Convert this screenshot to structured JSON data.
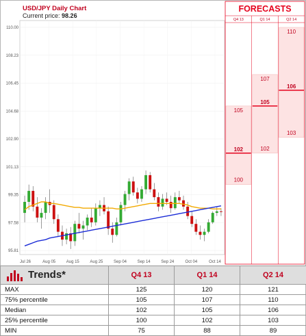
{
  "chart_data": {
    "type": "candlestick",
    "title": "USD/JPY Daily Chart",
    "current_price_label": "Current price:",
    "current_price": "98.26",
    "y_ticks": [
      "110.00",
      "108.23",
      "106.45",
      "104.68",
      "102.90",
      "101.13",
      "99.35",
      "97.58",
      "95.81"
    ],
    "x_ticks": [
      "Jul 26",
      "Aug 05",
      "Aug 15",
      "Aug 25",
      "Sep 04",
      "Sep 14",
      "Sep 24",
      "Oct 04",
      "Oct 14"
    ],
    "ylim": [
      95.81,
      110.0
    ],
    "candles": [
      {
        "o": 98.2,
        "h": 99.3,
        "l": 97.6,
        "c": 98.9
      },
      {
        "o": 98.9,
        "h": 100.0,
        "l": 98.4,
        "c": 99.6
      },
      {
        "o": 99.6,
        "h": 99.9,
        "l": 98.3,
        "c": 98.6
      },
      {
        "o": 98.6,
        "h": 99.2,
        "l": 97.6,
        "c": 97.9
      },
      {
        "o": 97.9,
        "h": 98.5,
        "l": 97.2,
        "c": 98.2
      },
      {
        "o": 98.2,
        "h": 99.2,
        "l": 97.8,
        "c": 98.9
      },
      {
        "o": 98.9,
        "h": 99.7,
        "l": 98.2,
        "c": 98.7
      },
      {
        "o": 98.7,
        "h": 99.0,
        "l": 97.5,
        "c": 97.8
      },
      {
        "o": 97.8,
        "h": 98.1,
        "l": 96.7,
        "c": 97.0
      },
      {
        "o": 97.0,
        "h": 97.4,
        "l": 96.1,
        "c": 96.5
      },
      {
        "o": 96.5,
        "h": 97.2,
        "l": 96.2,
        "c": 96.9
      },
      {
        "o": 96.9,
        "h": 97.3,
        "l": 95.9,
        "c": 96.4
      },
      {
        "o": 96.4,
        "h": 97.7,
        "l": 96.1,
        "c": 97.5
      },
      {
        "o": 97.5,
        "h": 98.2,
        "l": 96.9,
        "c": 97.2
      },
      {
        "o": 97.2,
        "h": 97.7,
        "l": 96.5,
        "c": 97.4
      },
      {
        "o": 97.4,
        "h": 98.1,
        "l": 97.1,
        "c": 97.9
      },
      {
        "o": 97.9,
        "h": 98.5,
        "l": 97.3,
        "c": 97.6
      },
      {
        "o": 97.6,
        "h": 98.8,
        "l": 97.4,
        "c": 98.5
      },
      {
        "o": 98.5,
        "h": 99.0,
        "l": 98.0,
        "c": 98.7
      },
      {
        "o": 98.7,
        "h": 99.2,
        "l": 98.1,
        "c": 98.3
      },
      {
        "o": 98.3,
        "h": 98.6,
        "l": 96.8,
        "c": 97.2
      },
      {
        "o": 97.2,
        "h": 97.6,
        "l": 96.3,
        "c": 96.8
      },
      {
        "o": 96.8,
        "h": 97.9,
        "l": 96.7,
        "c": 97.6
      },
      {
        "o": 97.6,
        "h": 98.9,
        "l": 97.4,
        "c": 98.7
      },
      {
        "o": 98.7,
        "h": 99.6,
        "l": 98.3,
        "c": 99.4
      },
      {
        "o": 99.4,
        "h": 100.4,
        "l": 99.0,
        "c": 100.2
      },
      {
        "o": 100.2,
        "h": 100.5,
        "l": 99.3,
        "c": 99.5
      },
      {
        "o": 99.5,
        "h": 99.8,
        "l": 98.8,
        "c": 99.1
      },
      {
        "o": 99.1,
        "h": 99.9,
        "l": 98.9,
        "c": 99.7
      },
      {
        "o": 99.7,
        "h": 100.9,
        "l": 99.4,
        "c": 100.6
      },
      {
        "o": 100.6,
        "h": 100.8,
        "l": 99.5,
        "c": 99.7
      },
      {
        "o": 99.7,
        "h": 100.1,
        "l": 99.0,
        "c": 99.2
      },
      {
        "o": 99.2,
        "h": 99.5,
        "l": 98.3,
        "c": 98.6
      },
      {
        "o": 98.6,
        "h": 99.4,
        "l": 98.4,
        "c": 99.1
      },
      {
        "o": 99.1,
        "h": 99.5,
        "l": 98.7,
        "c": 98.9
      },
      {
        "o": 98.9,
        "h": 99.3,
        "l": 98.2,
        "c": 98.5
      },
      {
        "o": 98.5,
        "h": 99.5,
        "l": 98.4,
        "c": 99.2
      },
      {
        "o": 99.2,
        "h": 99.6,
        "l": 98.8,
        "c": 99.0
      },
      {
        "o": 99.0,
        "h": 99.3,
        "l": 98.4,
        "c": 98.6
      },
      {
        "o": 98.6,
        "h": 98.9,
        "l": 97.8,
        "c": 98.0
      },
      {
        "o": 98.0,
        "h": 98.3,
        "l": 97.3,
        "c": 97.5
      },
      {
        "o": 97.5,
        "h": 97.8,
        "l": 96.8,
        "c": 97.0
      },
      {
        "o": 97.0,
        "h": 97.4,
        "l": 96.5,
        "c": 96.8
      },
      {
        "o": 96.8,
        "h": 97.2,
        "l": 96.4,
        "c": 97.0
      },
      {
        "o": 97.0,
        "h": 97.8,
        "l": 96.9,
        "c": 97.6
      },
      {
        "o": 97.6,
        "h": 98.3,
        "l": 97.5,
        "c": 98.2
      },
      {
        "o": 98.2,
        "h": 98.6,
        "l": 98.0,
        "c": 98.3
      },
      {
        "o": 98.3,
        "h": 98.5,
        "l": 98.0,
        "c": 98.26
      }
    ],
    "ma_short": [
      98.4,
      98.6,
      98.7,
      98.8,
      98.9,
      98.9,
      98.8,
      98.8,
      98.75,
      98.7,
      98.65,
      98.6,
      98.55,
      98.55,
      98.5,
      98.5,
      98.5,
      98.5,
      98.5,
      98.5,
      98.5,
      98.5,
      98.45,
      98.45,
      98.5,
      98.55,
      98.6,
      98.65,
      98.7,
      98.75,
      98.8,
      98.8,
      98.8,
      98.8,
      98.8,
      98.8,
      98.8,
      98.8,
      98.75,
      98.7,
      98.6,
      98.55,
      98.5,
      98.5,
      98.5,
      98.45,
      98.45,
      98.45
    ],
    "ma_long": [
      96.1,
      96.2,
      96.3,
      96.4,
      96.45,
      96.5,
      96.6,
      96.65,
      96.7,
      96.75,
      96.8,
      96.85,
      96.9,
      96.95,
      97.0,
      97.05,
      97.1,
      97.15,
      97.2,
      97.25,
      97.3,
      97.35,
      97.4,
      97.45,
      97.5,
      97.55,
      97.6,
      97.65,
      97.7,
      97.75,
      97.8,
      97.85,
      97.9,
      97.95,
      98.0,
      98.05,
      98.1,
      98.15,
      98.2,
      98.25,
      98.3,
      98.35,
      98.4,
      98.45,
      98.5,
      98.55,
      98.6,
      98.65
    ],
    "colors": {
      "up": "#33aa33",
      "down": "#cc1111",
      "ma_short": "#f2a900",
      "ma_long": "#1a2bd6"
    }
  },
  "forecasts": {
    "heading": "FORECASTS",
    "columns": [
      {
        "name": "Q4 13",
        "max": "105",
        "median": "102",
        "min": "100",
        "max_v": 105,
        "median_v": 102,
        "min_v": 100
      },
      {
        "name": "Q1 14",
        "max": "107",
        "median": "105",
        "min": "102",
        "max_v": 107,
        "median_v": 105,
        "min_v": 102
      },
      {
        "name": "Q2 14",
        "max": "110",
        "median": "106",
        "min": "103",
        "max_v": 110,
        "median_v": 106,
        "min_v": 103
      }
    ],
    "colors": {
      "band": "#fde3e3",
      "line": "#e5001c"
    }
  },
  "trends": {
    "title": "Trends*",
    "columns": [
      "Q4 13",
      "Q1 14",
      "Q2 14"
    ],
    "rows": [
      {
        "label": "MAX",
        "values": [
          "125",
          "120",
          "121"
        ]
      },
      {
        "label": "75% percentile",
        "values": [
          "105",
          "107",
          "110"
        ]
      },
      {
        "label": "Median",
        "values": [
          "102",
          "105",
          "106"
        ]
      },
      {
        "label": "25% percentile",
        "values": [
          "100",
          "102",
          "103"
        ]
      },
      {
        "label": "MIN",
        "values": [
          "75",
          "88",
          "89"
        ]
      }
    ]
  }
}
